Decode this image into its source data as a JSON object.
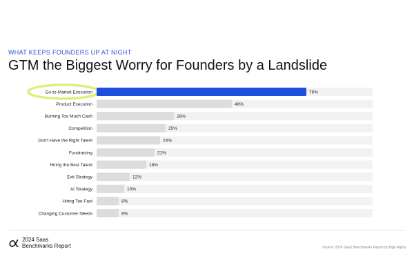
{
  "header": {
    "eyebrow": "WHAT KEEPS FOUNDERS UP AT NIGHT",
    "title": "GTM the Biggest Worry for Founders by a Landslide"
  },
  "chart_data": {
    "type": "bar",
    "orientation": "horizontal",
    "categories": [
      "Go-to-Market Execution",
      "Product Execution",
      "Burning Too Much Cash",
      "Competition",
      "Don't Have the Right Talent",
      "Fundraising",
      "Hiring the Best Talent",
      "Exit Strategy",
      "AI Strategy",
      "Hiring Too Fast",
      "Changing Customer Needs"
    ],
    "values": [
      76,
      49,
      28,
      25,
      23,
      21,
      18,
      12,
      10,
      8,
      8
    ],
    "value_labels": [
      "76%",
      "49%",
      "28%",
      "25%",
      "23%",
      "21%",
      "18%",
      "12%",
      "10%",
      "8%",
      "8%"
    ],
    "unit": "%",
    "xlim": [
      0,
      100
    ],
    "highlight_index": 0,
    "colors": {
      "highlight": "#1f4fe0",
      "bar": "#dcdcdc",
      "track": "#f2f2f2",
      "callout": "#d9f07a"
    }
  },
  "footer": {
    "brand_line1": "2024 Saas",
    "brand_line2": "Benchmarks Report",
    "logo_icon": "alpha-icon",
    "source": "Source: 2024 SaaS Benchmarks Report by High Alpha"
  }
}
